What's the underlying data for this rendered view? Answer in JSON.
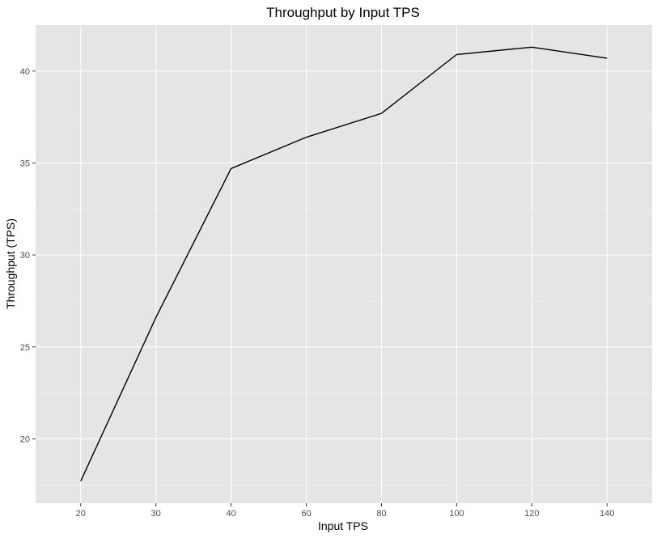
{
  "colors": {
    "panel_background": "#e5e5e5",
    "grid_major": "#ffffff",
    "grid_minor": "#f2f2f2",
    "line": "#000000",
    "tick_mark": "#333333"
  },
  "chart_data": {
    "type": "line",
    "title": "Throughput by Input TPS",
    "xlabel": "Input TPS",
    "ylabel": "Throughput (TPS)",
    "x_scale": "categorical",
    "categories": [
      "20",
      "30",
      "40",
      "60",
      "80",
      "100",
      "120",
      "140"
    ],
    "series": [
      {
        "values": [
          17.7,
          26.6,
          34.7,
          36.4,
          37.7,
          40.9,
          41.3,
          40.7
        ]
      }
    ],
    "yticks": [
      20,
      25,
      30,
      35,
      40
    ],
    "ytick_labels": [
      "20",
      "25",
      "30",
      "35",
      "40"
    ],
    "ylim": [
      16.5,
      42.5
    ],
    "grid": true,
    "legend": "none"
  }
}
